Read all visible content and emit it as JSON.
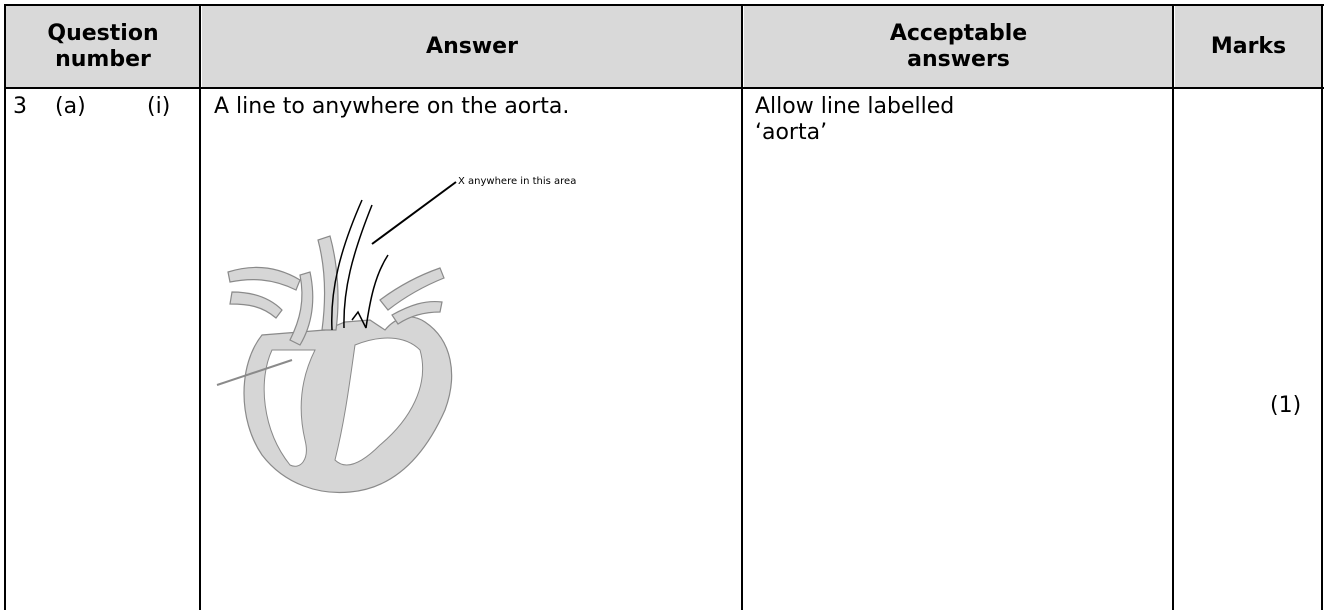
{
  "table": {
    "header": [
      "Question number",
      "Answer",
      "Acceptable answers",
      "Marks"
    ],
    "rows": [
      {
        "question": [
          "3",
          "(a)",
          "(i)"
        ],
        "answer": "A line to anywhere on the aorta.",
        "diagram_label": "X anywhere in this area",
        "acceptable": "Allow line labelled ‘aorta’",
        "marks": "(1)"
      }
    ]
  }
}
